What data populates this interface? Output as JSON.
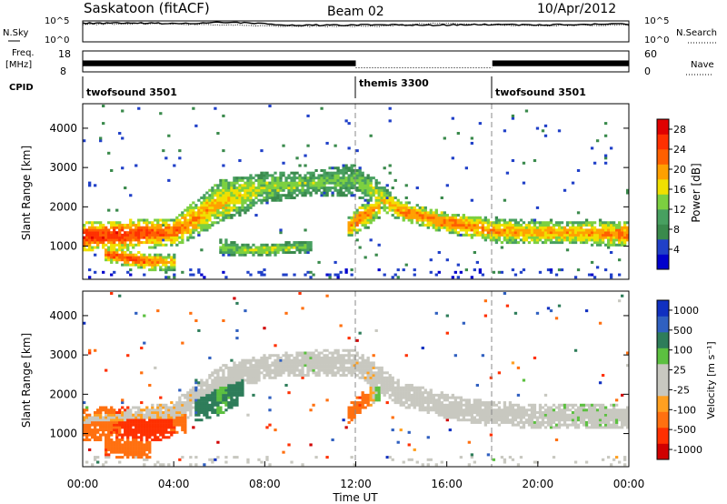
{
  "header": {
    "station": "Saskatoon (fitACF)",
    "beam": "Beam 02",
    "date": "10/Apr/2012"
  },
  "panels": {
    "nsky_label": "N.Sky",
    "nsky_ticks": [
      "10^5",
      "10^0"
    ],
    "nsearch_label": "N.Search",
    "nsearch_ticks": [
      "10^5",
      "10^0"
    ],
    "freq_label": "Freq.",
    "freq_unit": "[MHz]",
    "freq_ticks": [
      "18",
      "8"
    ],
    "nave_label": "Nave",
    "nave_ticks": [
      "60",
      "0"
    ],
    "cpid_label": "CPID"
  },
  "colors": {
    "power_scale": [
      "#0000cc",
      "#2040c8",
      "#3a8a4c",
      "#48a060",
      "#7cd040",
      "#f0e000",
      "#ffa000",
      "#ff6000",
      "#ff3000",
      "#e00000"
    ],
    "velocity_scale": [
      "#1030c0",
      "#3060c0",
      "#2e7d5a",
      "#5cc040",
      "#c8c8c0",
      "#c8c8c0",
      "#ffa020",
      "#ff7010",
      "#ff3000",
      "#d00000"
    ]
  },
  "chart_data": [
    {
      "type": "line",
      "name": "nsky-nsearch",
      "x_ticks": [
        "00:00",
        "04:00",
        "08:00",
        "12:00",
        "16:00",
        "20:00",
        "00:00"
      ],
      "series": [
        {
          "values": [
            4.6,
            4.7,
            4.5,
            4.9,
            4.2,
            4.1,
            4.2,
            4.1,
            4.3,
            4.2,
            4.3,
            4.4
          ]
        },
        {
          "values": [
            4.3,
            4.5,
            4.4,
            4.2,
            3.9,
            3.8,
            3.9,
            4.6,
            4.3,
            4.0,
            4.1,
            4.2
          ]
        }
      ]
    },
    {
      "type": "line",
      "name": "freq-nave",
      "freq_ylim": [
        8,
        18
      ],
      "nave_ylim": [
        0,
        60
      ],
      "segments": [
        {
          "start_h": 0,
          "end_h": 12,
          "freq": "10.5-13.5"
        },
        {
          "start_h": 12,
          "end_h": 18,
          "nave": 10
        },
        {
          "start_h": 18,
          "end_h": 24,
          "freq": "10.5-13.5"
        }
      ]
    },
    {
      "type": "table",
      "name": "cpid",
      "segments": [
        {
          "label": "twofsound 3501",
          "start_h": 0
        },
        {
          "label": "themis 3300",
          "start_h": 12
        },
        {
          "label": "twofsound 3501",
          "start_h": 18
        }
      ]
    },
    {
      "type": "heatmap",
      "name": "power",
      "ylabel": "Slant Range [km]",
      "yticks": [
        1000,
        2000,
        3000,
        4000
      ],
      "ylim": [
        180,
        4600
      ],
      "xlim": [
        0,
        24
      ],
      "colorbar_label": "Power [dB]",
      "colorbar_ticks": [
        "4",
        "8",
        "12",
        "16",
        "20",
        "24",
        "28"
      ],
      "range": [
        0,
        30
      ],
      "bands": [
        {
          "x": [
            0.0,
            2.0,
            4.0,
            6.0,
            8.0,
            10.0,
            12.0,
            14.0,
            16.0,
            18.0,
            20.0,
            22.0,
            24.0
          ],
          "center": [
            1250,
            1300,
            1350,
            2100,
            2500,
            2600,
            2700,
            1900,
            1600,
            1400,
            1350,
            1350,
            1300
          ],
          "width": [
            350,
            350,
            350,
            550,
            400,
            300,
            400,
            250,
            250,
            300,
            300,
            300,
            300
          ],
          "peak": [
            26,
            25,
            22,
            18,
            14,
            13,
            12,
            20,
            22,
            20,
            19,
            19,
            22
          ]
        },
        {
          "x": [
            1.0,
            2.0,
            3.0,
            4.0
          ],
          "center": [
            800,
            700,
            600,
            600
          ],
          "width": [
            200,
            200,
            200,
            200
          ],
          "peak": [
            22,
            24,
            22,
            18
          ]
        },
        {
          "x": [
            6.0,
            7.0,
            8.0,
            9.0,
            10.0
          ],
          "center": [
            1000,
            900,
            900,
            950,
            1000
          ],
          "width": [
            200,
            150,
            150,
            150,
            150
          ],
          "peak": [
            12,
            14,
            16,
            14,
            12
          ]
        },
        {
          "x": [
            11.7,
            12.2,
            13.0
          ],
          "center": [
            1500,
            1700,
            2000
          ],
          "width": [
            300,
            300,
            300
          ],
          "peak": [
            20,
            22,
            18
          ]
        }
      ]
    },
    {
      "type": "heatmap",
      "name": "velocity",
      "ylabel": "Slant Range [km]",
      "yticks": [
        1000,
        2000,
        3000,
        4000
      ],
      "ylim": [
        180,
        4600
      ],
      "xlim": [
        0,
        24
      ],
      "xlabel": "Time UT",
      "xticks": [
        "00:00",
        "04:00",
        "08:00",
        "12:00",
        "16:00",
        "20:00",
        "00:00"
      ],
      "colorbar_label": "Velocity [m s⁻¹]",
      "colorbar_ticks": [
        "1000",
        "500",
        "100",
        "25",
        "-25",
        "-100",
        "-500",
        "-1000"
      ],
      "bands": [
        {
          "x": [
            0.0,
            2.0,
            4.0,
            6.0,
            8.0,
            10.0,
            12.0,
            14.0,
            16.0,
            18.0,
            20.0,
            22.0,
            24.0
          ],
          "center": [
            1300,
            1400,
            1500,
            2300,
            2700,
            2800,
            2800,
            2000,
            1700,
            1500,
            1450,
            1450,
            1450
          ],
          "width": [
            250,
            250,
            300,
            400,
            300,
            300,
            350,
            300,
            300,
            300,
            300,
            300,
            300
          ],
          "vel": [
            -20,
            -20,
            -15,
            0,
            0,
            10,
            -10,
            0,
            0,
            0,
            5,
            10,
            5
          ]
        },
        {
          "x": [
            0.0,
            1.5,
            3.0,
            4.5
          ],
          "center": [
            1200,
            1300,
            1200,
            1300
          ],
          "width": [
            400,
            400,
            400,
            300
          ],
          "vel": [
            -200,
            -300,
            -400,
            -250
          ]
        },
        {
          "x": [
            1.0,
            2.0,
            3.0
          ],
          "center": [
            700,
            600,
            600
          ],
          "width": [
            250,
            250,
            250
          ],
          "vel": [
            -300,
            -200,
            -150
          ]
        },
        {
          "x": [
            5.0,
            6.0,
            7.0
          ],
          "center": [
            1800,
            2000,
            2200
          ],
          "width": [
            500,
            500,
            400
          ],
          "vel": [
            300,
            80,
            150
          ]
        },
        {
          "x": [
            11.7,
            12.2,
            13.0
          ],
          "center": [
            1500,
            1800,
            2100
          ],
          "width": [
            250,
            250,
            250
          ],
          "vel": [
            -250,
            -300,
            80
          ]
        }
      ]
    }
  ]
}
